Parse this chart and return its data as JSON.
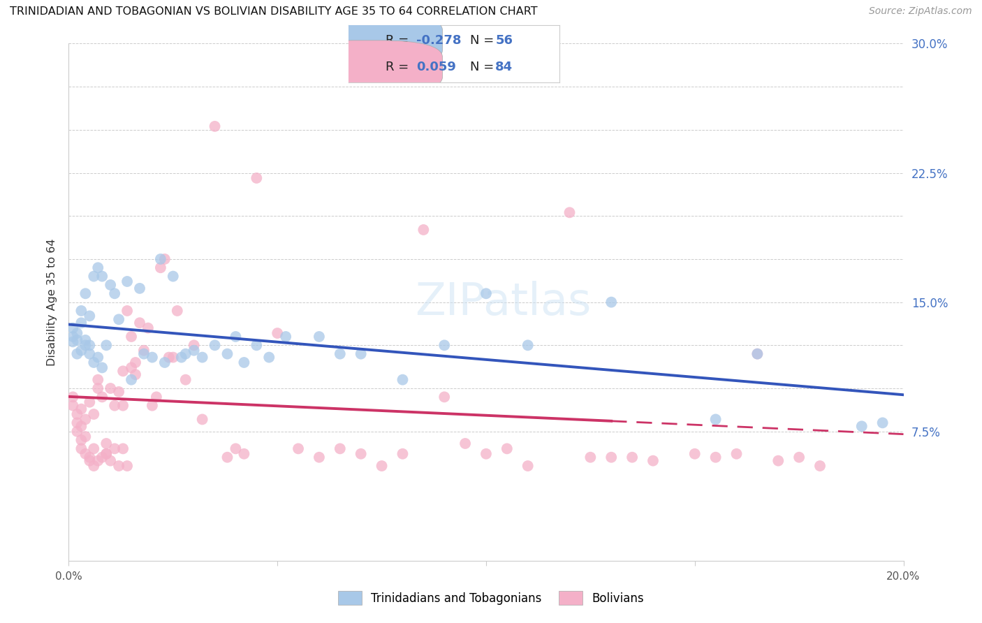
{
  "title": "TRINIDADIAN AND TOBAGONIAN VS BOLIVIAN DISABILITY AGE 35 TO 64 CORRELATION CHART",
  "source": "Source: ZipAtlas.com",
  "ylabel": "Disability Age 35 to 64",
  "xlim": [
    0.0,
    0.2
  ],
  "ylim": [
    0.0,
    0.3
  ],
  "blue_color": "#A8C8E8",
  "pink_color": "#F4B0C8",
  "blue_line_color": "#3355BB",
  "pink_line_color": "#CC3366",
  "blue_R": -0.278,
  "blue_N": 56,
  "pink_R": 0.059,
  "pink_N": 84,
  "legend_label_blue": "Trinidadians and Tobagonians",
  "legend_label_pink": "Bolivians",
  "accent_color": "#4472C4",
  "grid_color": "#CCCCCC",
  "bg_color": "#FFFFFF",
  "blue_x": [
    0.001,
    0.001,
    0.001,
    0.002,
    0.002,
    0.002,
    0.003,
    0.003,
    0.003,
    0.004,
    0.004,
    0.004,
    0.005,
    0.005,
    0.005,
    0.006,
    0.006,
    0.007,
    0.007,
    0.008,
    0.008,
    0.009,
    0.01,
    0.011,
    0.012,
    0.014,
    0.015,
    0.017,
    0.018,
    0.02,
    0.022,
    0.023,
    0.025,
    0.027,
    0.028,
    0.03,
    0.032,
    0.035,
    0.038,
    0.04,
    0.042,
    0.045,
    0.048,
    0.052,
    0.06,
    0.065,
    0.07,
    0.08,
    0.09,
    0.1,
    0.11,
    0.13,
    0.155,
    0.165,
    0.19,
    0.195
  ],
  "blue_y": [
    0.127,
    0.13,
    0.135,
    0.12,
    0.128,
    0.132,
    0.122,
    0.138,
    0.145,
    0.125,
    0.128,
    0.155,
    0.12,
    0.125,
    0.142,
    0.115,
    0.165,
    0.118,
    0.17,
    0.112,
    0.165,
    0.125,
    0.16,
    0.155,
    0.14,
    0.162,
    0.105,
    0.158,
    0.12,
    0.118,
    0.175,
    0.115,
    0.165,
    0.118,
    0.12,
    0.122,
    0.118,
    0.125,
    0.12,
    0.13,
    0.115,
    0.125,
    0.118,
    0.13,
    0.13,
    0.12,
    0.12,
    0.105,
    0.125,
    0.155,
    0.125,
    0.15,
    0.082,
    0.12,
    0.078,
    0.08
  ],
  "pink_x": [
    0.001,
    0.001,
    0.002,
    0.002,
    0.002,
    0.003,
    0.003,
    0.003,
    0.003,
    0.004,
    0.004,
    0.004,
    0.005,
    0.005,
    0.005,
    0.006,
    0.006,
    0.006,
    0.007,
    0.007,
    0.007,
    0.008,
    0.008,
    0.009,
    0.009,
    0.009,
    0.01,
    0.01,
    0.011,
    0.011,
    0.012,
    0.012,
    0.013,
    0.013,
    0.013,
    0.014,
    0.014,
    0.015,
    0.015,
    0.016,
    0.016,
    0.017,
    0.018,
    0.019,
    0.02,
    0.021,
    0.022,
    0.023,
    0.024,
    0.025,
    0.026,
    0.028,
    0.03,
    0.032,
    0.035,
    0.038,
    0.04,
    0.042,
    0.045,
    0.05,
    0.055,
    0.06,
    0.065,
    0.07,
    0.075,
    0.08,
    0.085,
    0.09,
    0.095,
    0.1,
    0.105,
    0.11,
    0.12,
    0.125,
    0.13,
    0.135,
    0.14,
    0.15,
    0.155,
    0.16,
    0.165,
    0.17,
    0.175,
    0.18
  ],
  "pink_y": [
    0.095,
    0.09,
    0.085,
    0.08,
    0.075,
    0.07,
    0.078,
    0.065,
    0.088,
    0.072,
    0.082,
    0.062,
    0.06,
    0.058,
    0.092,
    0.055,
    0.085,
    0.065,
    0.058,
    0.105,
    0.1,
    0.06,
    0.095,
    0.068,
    0.062,
    0.062,
    0.058,
    0.1,
    0.065,
    0.09,
    0.055,
    0.098,
    0.065,
    0.11,
    0.09,
    0.055,
    0.145,
    0.112,
    0.13,
    0.108,
    0.115,
    0.138,
    0.122,
    0.135,
    0.09,
    0.095,
    0.17,
    0.175,
    0.118,
    0.118,
    0.145,
    0.105,
    0.125,
    0.082,
    0.252,
    0.06,
    0.065,
    0.062,
    0.222,
    0.132,
    0.065,
    0.06,
    0.065,
    0.062,
    0.055,
    0.062,
    0.192,
    0.095,
    0.068,
    0.062,
    0.065,
    0.055,
    0.202,
    0.06,
    0.06,
    0.06,
    0.058,
    0.062,
    0.06,
    0.062,
    0.12,
    0.058,
    0.06,
    0.055
  ]
}
